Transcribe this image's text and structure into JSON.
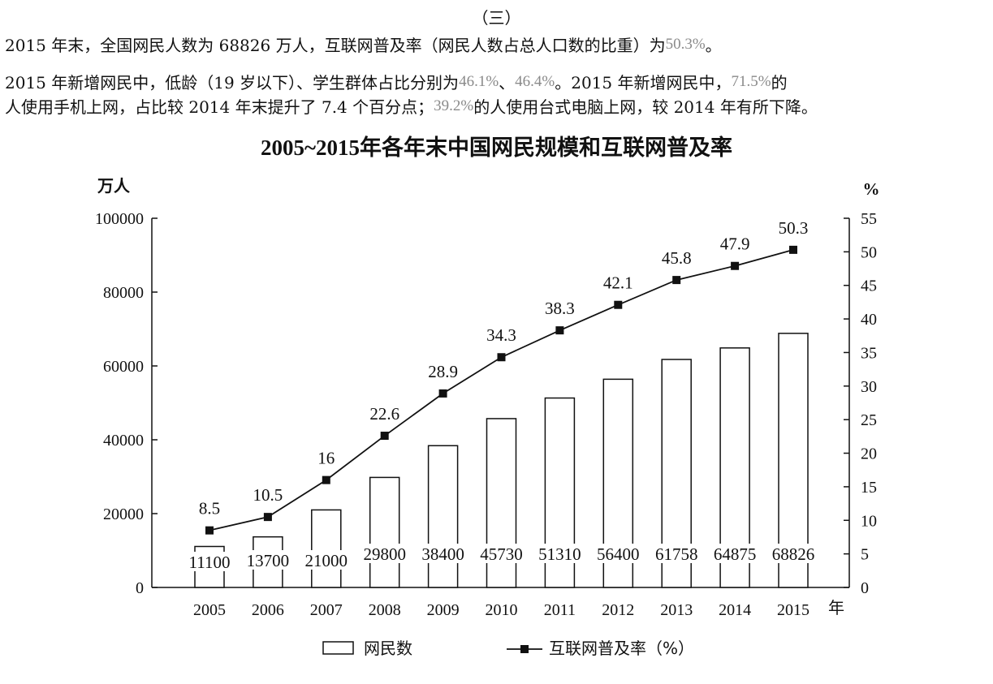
{
  "section_label": "（三）",
  "para1": {
    "before": "2015 年末，全国网民人数为 68826 万人，互联网普及率（网民人数占总人口数的比重）为",
    "hl": "50.3%",
    "after": "。"
  },
  "para2": {
    "t1": "2015 年新增网民中，低龄（19 岁以下）、学生群体占比分别为",
    "hl1": "46.1%",
    "t2": "、",
    "hl2": "46.4%",
    "t3": "。2015 年新增网民中，",
    "hl3": "71.5%",
    "t4": "的"
  },
  "para3": {
    "t1": "人使用手机上网，占比较 2014 年末提升了 7.4 个百分点；",
    "hl": "39.2%",
    "t2": "的人使用台式电脑上网，较 2014 年有所下降。"
  },
  "chart_data": {
    "type": "bar",
    "title": "2005~2015年各年末中国网民规模和互联网普及率",
    "categories": [
      "2005",
      "2006",
      "2007",
      "2008",
      "2009",
      "2010",
      "2011",
      "2012",
      "2013",
      "2014",
      "2015"
    ],
    "xlabel": "年",
    "ylabel_left": "万人",
    "ylabel_right": "%",
    "ylim_left": [
      0,
      100000
    ],
    "yticks_left": [
      "0",
      "20000",
      "40000",
      "60000",
      "80000",
      "100000"
    ],
    "ylim_right": [
      0,
      55
    ],
    "yticks_right": [
      "0",
      "5",
      "10",
      "15",
      "20",
      "25",
      "30",
      "35",
      "40",
      "45",
      "50",
      "55"
    ],
    "series": [
      {
        "name": "网民数",
        "type": "bar",
        "values": [
          11100,
          13700,
          21000,
          29800,
          38400,
          45730,
          51310,
          56400,
          61758,
          64875,
          68826
        ],
        "labels": [
          "11100",
          "13700",
          "21000",
          "29800",
          "38400",
          "45730",
          "51310",
          "56400",
          "61758",
          "64875",
          "68826"
        ]
      },
      {
        "name": "互联网普及率（%）",
        "type": "line",
        "axis": "right",
        "values": [
          8.5,
          10.5,
          16,
          22.6,
          28.9,
          34.3,
          38.3,
          42.1,
          45.8,
          47.9,
          50.3
        ],
        "labels": [
          "8.5",
          "10.5",
          "16",
          "22.6",
          "28.9",
          "34.3",
          "38.3",
          "42.1",
          "45.8",
          "47.9",
          "50.3"
        ]
      }
    ],
    "legend_position": "bottom",
    "colors": {
      "bar_fill": "#ffffff",
      "stroke": "#111111",
      "marker": "#111111"
    }
  }
}
